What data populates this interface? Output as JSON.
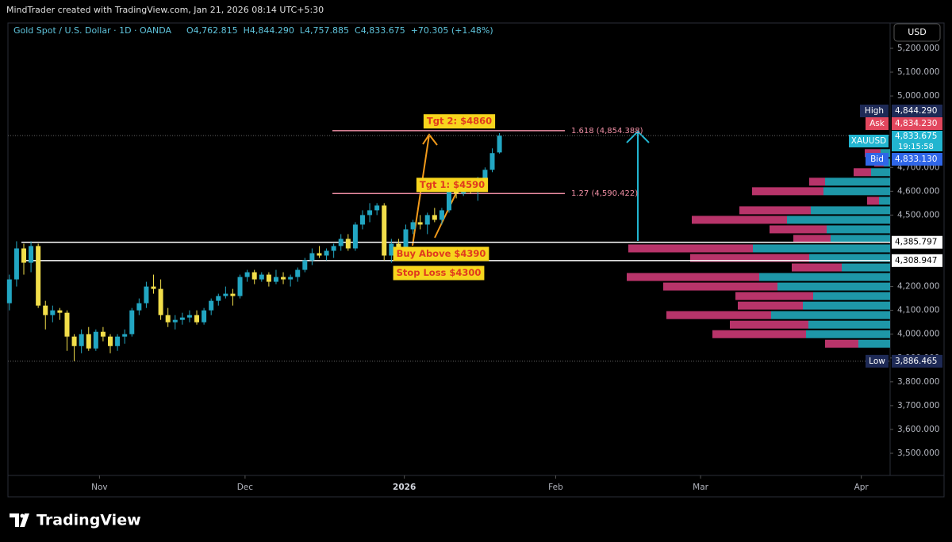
{
  "header": {
    "credit": "MindTrader created with TradingView.com, Jan 21, 2026 08:14 UTC+5:30"
  },
  "chart_data": {
    "type": "candlestick",
    "title": "Gold Spot / U.S. Dollar · 1D · OANDA",
    "ohlc_legend": [
      "O4,762.815",
      "H4,844.290",
      "L4,757.885",
      "C4,833.675",
      "+70.305 (+1.48%)"
    ],
    "currency": "USD",
    "series": [
      {
        "name": "XAUUSD",
        "up_color": "#22a6c2",
        "down_color": "#f2de4a",
        "open": [
          4130,
          4230,
          4360,
          4300,
          4370,
          4120,
          4080,
          4100,
          4090,
          3990,
          3950,
          4000,
          3940,
          4010,
          3990,
          3950,
          3990,
          4000,
          4100,
          4130,
          4200,
          4190,
          4080,
          4050,
          4060,
          4070,
          4080,
          4050,
          4100,
          4140,
          4160,
          4170,
          4160,
          4240,
          4260,
          4230,
          4250,
          4220,
          4240,
          4230,
          4240,
          4270,
          4310,
          4340,
          4330,
          4350,
          4370,
          4400,
          4360,
          4460,
          4500,
          4520,
          4540,
          4330,
          4380,
          4340,
          4440,
          4470,
          4460,
          4500,
          4480,
          4520,
          4600,
          4590,
          4630,
          4600,
          4650,
          4690,
          4762.815
        ],
        "high": [
          4250,
          4390,
          4380,
          4390,
          4380,
          4140,
          4120,
          4110,
          4100,
          4000,
          4020,
          4030,
          4020,
          4030,
          4000,
          4000,
          4020,
          4110,
          4150,
          4220,
          4250,
          4230,
          4110,
          4080,
          4090,
          4100,
          4100,
          4110,
          4150,
          4170,
          4200,
          4190,
          4250,
          4270,
          4270,
          4260,
          4260,
          4270,
          4260,
          4250,
          4280,
          4320,
          4360,
          4370,
          4360,
          4380,
          4420,
          4420,
          4470,
          4520,
          4550,
          4550,
          4550,
          4400,
          4400,
          4460,
          4480,
          4500,
          4510,
          4530,
          4530,
          4620,
          4650,
          4640,
          4640,
          4660,
          4700,
          4780,
          4844.29
        ],
        "low": [
          4100,
          4200,
          4250,
          4260,
          4110,
          4020,
          4050,
          4060,
          3930,
          3886.465,
          3920,
          3930,
          3930,
          3970,
          3920,
          3930,
          3960,
          3990,
          4080,
          4110,
          4170,
          4060,
          4030,
          4020,
          4040,
          4050,
          4040,
          4040,
          4080,
          4120,
          4150,
          4120,
          4150,
          4220,
          4210,
          4220,
          4200,
          4210,
          4210,
          4200,
          4220,
          4260,
          4290,
          4320,
          4310,
          4320,
          4350,
          4350,
          4350,
          4440,
          4470,
          4500,
          4310,
          4300,
          4320,
          4330,
          4420,
          4440,
          4420,
          4470,
          4460,
          4510,
          4570,
          4580,
          4590,
          4560,
          4640,
          4680,
          4757.885
        ],
        "close": [
          4230,
          4360,
          4300,
          4370,
          4120,
          4080,
          4100,
          4090,
          3990,
          3950,
          4000,
          3940,
          4010,
          3990,
          3950,
          3990,
          4000,
          4100,
          4130,
          4200,
          4190,
          4080,
          4050,
          4060,
          4070,
          4080,
          4050,
          4100,
          4140,
          4160,
          4170,
          4160,
          4240,
          4260,
          4230,
          4250,
          4220,
          4240,
          4230,
          4240,
          4270,
          4310,
          4340,
          4330,
          4350,
          4370,
          4400,
          4360,
          4460,
          4500,
          4520,
          4540,
          4330,
          4380,
          4340,
          4440,
          4470,
          4460,
          4500,
          4480,
          4520,
          4600,
          4590,
          4630,
          4600,
          4650,
          4690,
          4760,
          4833.675
        ]
      }
    ],
    "xlim": [
      -0.2,
      122.2
    ],
    "xticks": [
      {
        "value": 12.5,
        "label": "Nov"
      },
      {
        "value": 32.7,
        "label": "Dec"
      },
      {
        "value": 54.8,
        "label": "2026"
      },
      {
        "value": 75.8,
        "label": "Feb"
      },
      {
        "value": 95.9,
        "label": "Mar"
      },
      {
        "value": 118.2,
        "label": "Apr"
      }
    ],
    "ylim": [
      3407,
      5303
    ],
    "yticks": [
      {
        "value": 5200,
        "label": "5,200.000"
      },
      {
        "value": 5100,
        "label": "5,100.000"
      },
      {
        "value": 5000,
        "label": "5,000.000"
      },
      {
        "value": 4700,
        "label": "4,700.000"
      },
      {
        "value": 4600,
        "label": "4,600.000"
      },
      {
        "value": 4500,
        "label": "4,500.000"
      },
      {
        "value": 4200,
        "label": "4,200.000"
      },
      {
        "value": 4100,
        "label": "4,100.000"
      },
      {
        "value": 4000,
        "label": "4,000.000"
      },
      {
        "value": 3900,
        "label": "3,900.000"
      },
      {
        "value": 3800,
        "label": "3,800.000"
      },
      {
        "value": 3700,
        "label": "3,700.000"
      },
      {
        "value": 3600,
        "label": "3,600.000"
      },
      {
        "value": 3500,
        "label": "3,500.000"
      }
    ],
    "levels": [
      {
        "value": 4385.797,
        "label": "4,385.797"
      },
      {
        "value": 4308.947,
        "label": "4,308.947"
      }
    ],
    "fib": [
      {
        "value": 4854.388,
        "label": "1.618 (4,854.388)"
      },
      {
        "value": 4590.422,
        "label": "1.27 (4,590.422)"
      }
    ],
    "price_tags": [
      {
        "name": "High",
        "value": 4844.29,
        "label": "4,844.290",
        "color": "#1e2a56"
      },
      {
        "name": "Ask",
        "value": 4834.23,
        "label": "4,834.230",
        "color": "#e2475e"
      },
      {
        "name": "XAUUSD",
        "value": 4833.675,
        "label": "4,833.675",
        "color": "#22b5d0",
        "countdown": "19:15:58"
      },
      {
        "name": "Bid",
        "value": 4833.13,
        "label": "4,833.130",
        "color": "#2f66e8"
      },
      {
        "name": "Low",
        "value": 3886.465,
        "label": "3,886.465",
        "color": "#1e2a56"
      }
    ],
    "annotations": [
      {
        "text": "Tgt 2: $4860",
        "value": 4860
      },
      {
        "text": "Tgt 1: $4590",
        "value": 4590
      },
      {
        "text": "Buy Above $4390",
        "value": 4390
      },
      {
        "text": "Stop Loss $4300",
        "value": 4300
      }
    ],
    "volume_profile": {
      "prices": [
        4760,
        4720,
        4680,
        4640,
        4600,
        4560,
        4520,
        4480,
        4440,
        4400,
        4360,
        4320,
        4280,
        4240,
        4200,
        4160,
        4120,
        4080,
        4040,
        4000,
        3960
      ],
      "sell": [
        20,
        12,
        22,
        20,
        90,
        15,
        90,
        120,
        72,
        47,
        157,
        150,
        63,
        167,
        144,
        98,
        82,
        132,
        99,
        118,
        42
      ],
      "buy": [
        12,
        8,
        24,
        82,
        84,
        14,
        100,
        130,
        80,
        75,
        173,
        102,
        61,
        165,
        142,
        97,
        110,
        150,
        103,
        106,
        40
      ],
      "sell_color": "#b8346a",
      "buy_color": "#1e97a8"
    }
  },
  "footer": {
    "brand": "TradingView"
  }
}
